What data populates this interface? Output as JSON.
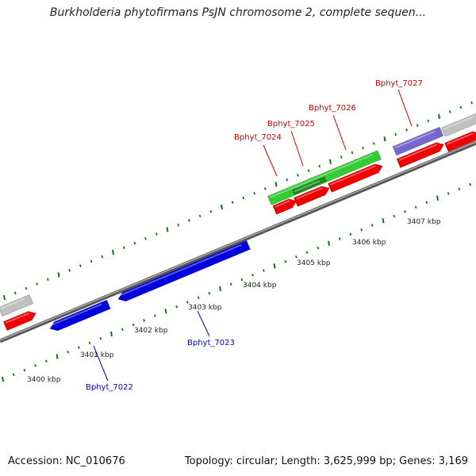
{
  "title": "Burkholderia phytofirmans PsJN chromosome 2, complete sequen...",
  "accession": "Accession: NC_010676",
  "summary": "Topology: circular; Length: 3,625,999 bp; Genes: 3,169",
  "colors": {
    "forward_gene": "#ee0000",
    "reverse_gene": "#0000dd",
    "green_feature": "#33cc33",
    "purple_feature": "#7766cc",
    "grey_feature": "#c0c0c0",
    "backbone": "#777777",
    "tick": "#117711",
    "label_red": "#cc0000",
    "label_blue": "#0000cc"
  },
  "scale_labels": [
    "3400 kbp",
    "3401 kbp",
    "3402 kbp",
    "3403 kbp",
    "3404 kbp",
    "3405 kbp",
    "3406 kbp",
    "3407 kbp"
  ],
  "gene_labels": [
    {
      "text": "Bphyt_7022",
      "strand": "reverse"
    },
    {
      "text": "Bphyt_7023",
      "strand": "reverse"
    },
    {
      "text": "Bphyt_7024",
      "strand": "forward"
    },
    {
      "text": "Bphyt_7025",
      "strand": "forward"
    },
    {
      "text": "Bphyt_7026",
      "strand": "forward"
    },
    {
      "text": "Bphyt_7027",
      "strand": "forward"
    }
  ]
}
